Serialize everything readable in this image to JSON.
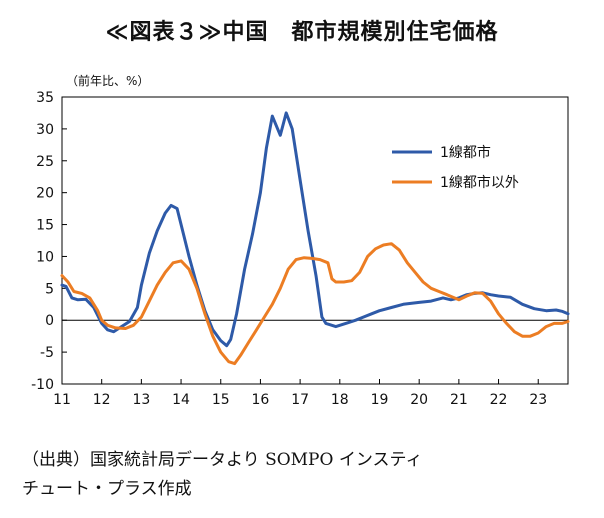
{
  "title": "≪図表３≫中国　都市規模別住宅価格",
  "source_line1": "（出典）国家統計局データより SOMPO インスティ",
  "source_line2": "チュート・プラス作成",
  "colors": {
    "tier1": "#2e5aa8",
    "non_tier1": "#ec7d23",
    "axis": "#000000"
  },
  "chart_data": {
    "type": "line",
    "title": "≪図表３≫中国　都市規模別住宅価格",
    "unit": "（前年比、%）",
    "xlabel": "",
    "ylabel": "",
    "xlim": [
      11,
      23.75
    ],
    "ylim": [
      -10,
      35
    ],
    "x_ticks": [
      11,
      12,
      13,
      14,
      15,
      16,
      17,
      18,
      19,
      20,
      21,
      22,
      23
    ],
    "x_tick_labels": [
      "11",
      "12",
      "13",
      "14",
      "15",
      "16",
      "17",
      "18",
      "19",
      "20",
      "21",
      "22",
      "23"
    ],
    "y_ticks": [
      -10,
      -5,
      0,
      5,
      10,
      15,
      20,
      25,
      30,
      35
    ],
    "y_tick_labels": [
      "-10",
      "-5",
      "0",
      "5",
      "10",
      "15",
      "20",
      "25",
      "30",
      "35"
    ],
    "grid": false,
    "legend_position": "top-right",
    "series": [
      {
        "name": "1線都市",
        "color": "#2e5aa8",
        "points": [
          [
            11.0,
            5.5
          ],
          [
            11.1,
            5.3
          ],
          [
            11.25,
            3.5
          ],
          [
            11.4,
            3.2
          ],
          [
            11.6,
            3.3
          ],
          [
            11.8,
            2.0
          ],
          [
            12.0,
            -0.5
          ],
          [
            12.15,
            -1.5
          ],
          [
            12.3,
            -1.8
          ],
          [
            12.5,
            -1.0
          ],
          [
            12.7,
            -0.2
          ],
          [
            12.9,
            2.0
          ],
          [
            13.0,
            5.5
          ],
          [
            13.2,
            10.5
          ],
          [
            13.4,
            14.0
          ],
          [
            13.6,
            16.8
          ],
          [
            13.75,
            18.0
          ],
          [
            13.9,
            17.5
          ],
          [
            14.0,
            15.0
          ],
          [
            14.2,
            10.0
          ],
          [
            14.4,
            5.5
          ],
          [
            14.6,
            1.5
          ],
          [
            14.8,
            -1.5
          ],
          [
            15.0,
            -3.2
          ],
          [
            15.15,
            -4.0
          ],
          [
            15.25,
            -3.0
          ],
          [
            15.4,
            1.0
          ],
          [
            15.6,
            8.0
          ],
          [
            15.8,
            13.5
          ],
          [
            16.0,
            20.0
          ],
          [
            16.15,
            27.0
          ],
          [
            16.3,
            32.0
          ],
          [
            16.5,
            29.0
          ],
          [
            16.65,
            32.5
          ],
          [
            16.8,
            30.0
          ],
          [
            17.0,
            22.0
          ],
          [
            17.2,
            14.0
          ],
          [
            17.4,
            7.0
          ],
          [
            17.55,
            0.5
          ],
          [
            17.65,
            -0.5
          ],
          [
            17.8,
            -0.8
          ],
          [
            17.9,
            -1.0
          ],
          [
            18.0,
            -0.8
          ],
          [
            18.2,
            -0.4
          ],
          [
            18.4,
            0.0
          ],
          [
            18.6,
            0.5
          ],
          [
            18.8,
            1.0
          ],
          [
            19.0,
            1.5
          ],
          [
            19.3,
            2.0
          ],
          [
            19.6,
            2.5
          ],
          [
            20.0,
            2.8
          ],
          [
            20.3,
            3.0
          ],
          [
            20.6,
            3.5
          ],
          [
            20.8,
            3.2
          ],
          [
            21.0,
            3.5
          ],
          [
            21.2,
            4.0
          ],
          [
            21.4,
            4.2
          ],
          [
            21.6,
            4.3
          ],
          [
            21.8,
            4.0
          ],
          [
            22.0,
            3.8
          ],
          [
            22.3,
            3.6
          ],
          [
            22.6,
            2.5
          ],
          [
            22.9,
            1.8
          ],
          [
            23.2,
            1.5
          ],
          [
            23.45,
            1.6
          ],
          [
            23.6,
            1.4
          ],
          [
            23.75,
            1.0
          ]
        ]
      },
      {
        "name": "1線都市以外",
        "color": "#ec7d23",
        "points": [
          [
            11.0,
            7.0
          ],
          [
            11.15,
            6.0
          ],
          [
            11.3,
            4.5
          ],
          [
            11.5,
            4.2
          ],
          [
            11.7,
            3.5
          ],
          [
            11.9,
            1.5
          ],
          [
            12.0,
            0.0
          ],
          [
            12.15,
            -0.8
          ],
          [
            12.35,
            -1.2
          ],
          [
            12.6,
            -1.3
          ],
          [
            12.8,
            -0.8
          ],
          [
            13.0,
            0.5
          ],
          [
            13.2,
            3.0
          ],
          [
            13.4,
            5.5
          ],
          [
            13.6,
            7.5
          ],
          [
            13.8,
            9.0
          ],
          [
            14.0,
            9.3
          ],
          [
            14.2,
            8.0
          ],
          [
            14.4,
            5.0
          ],
          [
            14.6,
            1.0
          ],
          [
            14.8,
            -2.5
          ],
          [
            15.0,
            -5.0
          ],
          [
            15.2,
            -6.5
          ],
          [
            15.35,
            -6.8
          ],
          [
            15.5,
            -5.5
          ],
          [
            15.7,
            -3.5
          ],
          [
            15.9,
            -1.5
          ],
          [
            16.1,
            0.5
          ],
          [
            16.3,
            2.5
          ],
          [
            16.5,
            5.0
          ],
          [
            16.7,
            8.0
          ],
          [
            16.9,
            9.5
          ],
          [
            17.1,
            9.8
          ],
          [
            17.3,
            9.7
          ],
          [
            17.5,
            9.5
          ],
          [
            17.7,
            9.0
          ],
          [
            17.8,
            6.5
          ],
          [
            17.9,
            6.0
          ],
          [
            18.1,
            6.0
          ],
          [
            18.3,
            6.2
          ],
          [
            18.5,
            7.5
          ],
          [
            18.7,
            10.0
          ],
          [
            18.9,
            11.2
          ],
          [
            19.1,
            11.8
          ],
          [
            19.3,
            12.0
          ],
          [
            19.5,
            11.0
          ],
          [
            19.7,
            9.0
          ],
          [
            19.9,
            7.5
          ],
          [
            20.1,
            6.0
          ],
          [
            20.3,
            5.0
          ],
          [
            20.5,
            4.5
          ],
          [
            20.7,
            4.0
          ],
          [
            21.0,
            3.2
          ],
          [
            21.2,
            3.8
          ],
          [
            21.4,
            4.3
          ],
          [
            21.6,
            4.2
          ],
          [
            21.8,
            3.0
          ],
          [
            22.0,
            1.0
          ],
          [
            22.2,
            -0.5
          ],
          [
            22.4,
            -1.8
          ],
          [
            22.6,
            -2.5
          ],
          [
            22.8,
            -2.5
          ],
          [
            23.0,
            -2.0
          ],
          [
            23.2,
            -1.0
          ],
          [
            23.4,
            -0.5
          ],
          [
            23.6,
            -0.5
          ],
          [
            23.75,
            -0.2
          ]
        ]
      }
    ]
  }
}
